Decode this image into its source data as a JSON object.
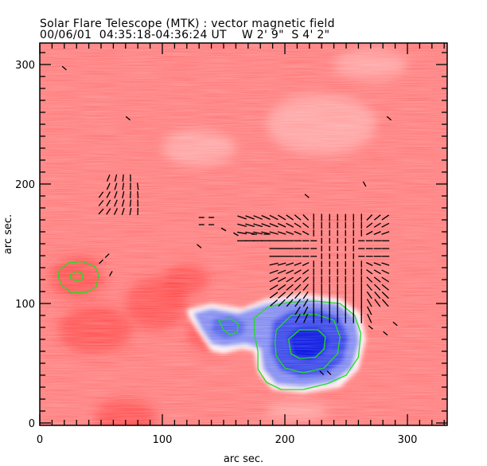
{
  "header": {
    "title": "Solar Flare Telescope (MTK) : vector magnetic field",
    "subtitle_date": "00/06/01",
    "subtitle_time": "04:35:18-04:36:24 UT",
    "subtitle_pos_w": "W 2' 9\"",
    "subtitle_pos_s": "S 4' 2\""
  },
  "colors": {
    "positive_field": "#ff7a7a",
    "strong_positive": "#ff3030",
    "negative_field": "#3040e8",
    "strong_negative": "#0010e0",
    "neutral": "#ffffff",
    "contour": "#22dd22",
    "vector": "#000000"
  },
  "chart_data": {
    "type": "heatmap",
    "title": "Solar Flare Telescope (MTK) : vector magnetic field",
    "xlabel": "arc sec.",
    "ylabel": "arc sec.",
    "xlim": [
      0,
      332
    ],
    "ylim": [
      0,
      318
    ],
    "x_ticks": [
      0,
      100,
      200,
      300
    ],
    "y_ticks": [
      0,
      100,
      200,
      300
    ],
    "x_tick_labels": [
      "0",
      "100",
      "200",
      "300"
    ],
    "y_tick_labels": [
      "0",
      "100",
      "200",
      "300"
    ],
    "x_minor_step": 10,
    "y_minor_step": 10,
    "colormap": "red = positive polarity, blue = negative polarity",
    "regions": [
      {
        "name": "negative-umbra-main",
        "polarity": "negative",
        "center": [
          215,
          68
        ],
        "extent": [
          [
            170,
            30
          ],
          [
            255,
            100
          ]
        ]
      },
      {
        "name": "negative-small",
        "polarity": "negative",
        "center": [
          155,
          82
        ],
        "extent": [
          [
            125,
            60
          ],
          [
            185,
            100
          ]
        ]
      },
      {
        "name": "positive-spot-left",
        "polarity": "positive",
        "center": [
          30,
          122
        ]
      }
    ],
    "contours": [
      {
        "level": "outer",
        "around": "negative-umbra-main",
        "points": [
          [
            175,
            88
          ],
          [
            186,
            97
          ],
          [
            203,
            101
          ],
          [
            225,
            102
          ],
          [
            245,
            100
          ],
          [
            257,
            90
          ],
          [
            262,
            75
          ],
          [
            260,
            55
          ],
          [
            250,
            40
          ],
          [
            235,
            33
          ],
          [
            215,
            28
          ],
          [
            197,
            28
          ],
          [
            185,
            34
          ],
          [
            178,
            45
          ],
          [
            178,
            60
          ],
          [
            175,
            75
          ]
        ]
      },
      {
        "level": "middle",
        "around": "negative-umbra-main",
        "points": [
          [
            193,
            78
          ],
          [
            205,
            90
          ],
          [
            225,
            91
          ],
          [
            240,
            86
          ],
          [
            245,
            72
          ],
          [
            243,
            58
          ],
          [
            232,
            46
          ],
          [
            215,
            42
          ],
          [
            200,
            46
          ],
          [
            193,
            56
          ],
          [
            192,
            67
          ]
        ]
      },
      {
        "level": "inner",
        "around": "negative-umbra-main",
        "points": [
          [
            203,
            70
          ],
          [
            212,
            78
          ],
          [
            227,
            78
          ],
          [
            233,
            72
          ],
          [
            232,
            62
          ],
          [
            225,
            55
          ],
          [
            212,
            54
          ],
          [
            205,
            58
          ]
        ]
      },
      {
        "level": "outer",
        "around": "negative-small",
        "points": [
          [
            146,
            86
          ],
          [
            156,
            87
          ],
          [
            162,
            83
          ],
          [
            161,
            76
          ],
          [
            155,
            74
          ],
          [
            150,
            78
          ]
        ]
      },
      {
        "level": "outer",
        "around": "positive-spot-left",
        "points": [
          [
            16,
            128
          ],
          [
            23,
            134
          ],
          [
            35,
            135
          ],
          [
            45,
            131
          ],
          [
            48,
            124
          ],
          [
            46,
            114
          ],
          [
            38,
            109
          ],
          [
            26,
            109
          ],
          [
            18,
            115
          ],
          [
            15,
            122
          ]
        ]
      },
      {
        "level": "inner",
        "around": "positive-spot-left",
        "points": [
          [
            25,
            124
          ],
          [
            30,
            127
          ],
          [
            35,
            125
          ],
          [
            35,
            120
          ],
          [
            30,
            119
          ],
          [
            25,
            121
          ]
        ]
      }
    ],
    "vectors_note": "transverse field vectors (line segments) in grid clusters near (55-85, 175-205), (130-290, 85-175) and scattered points"
  }
}
